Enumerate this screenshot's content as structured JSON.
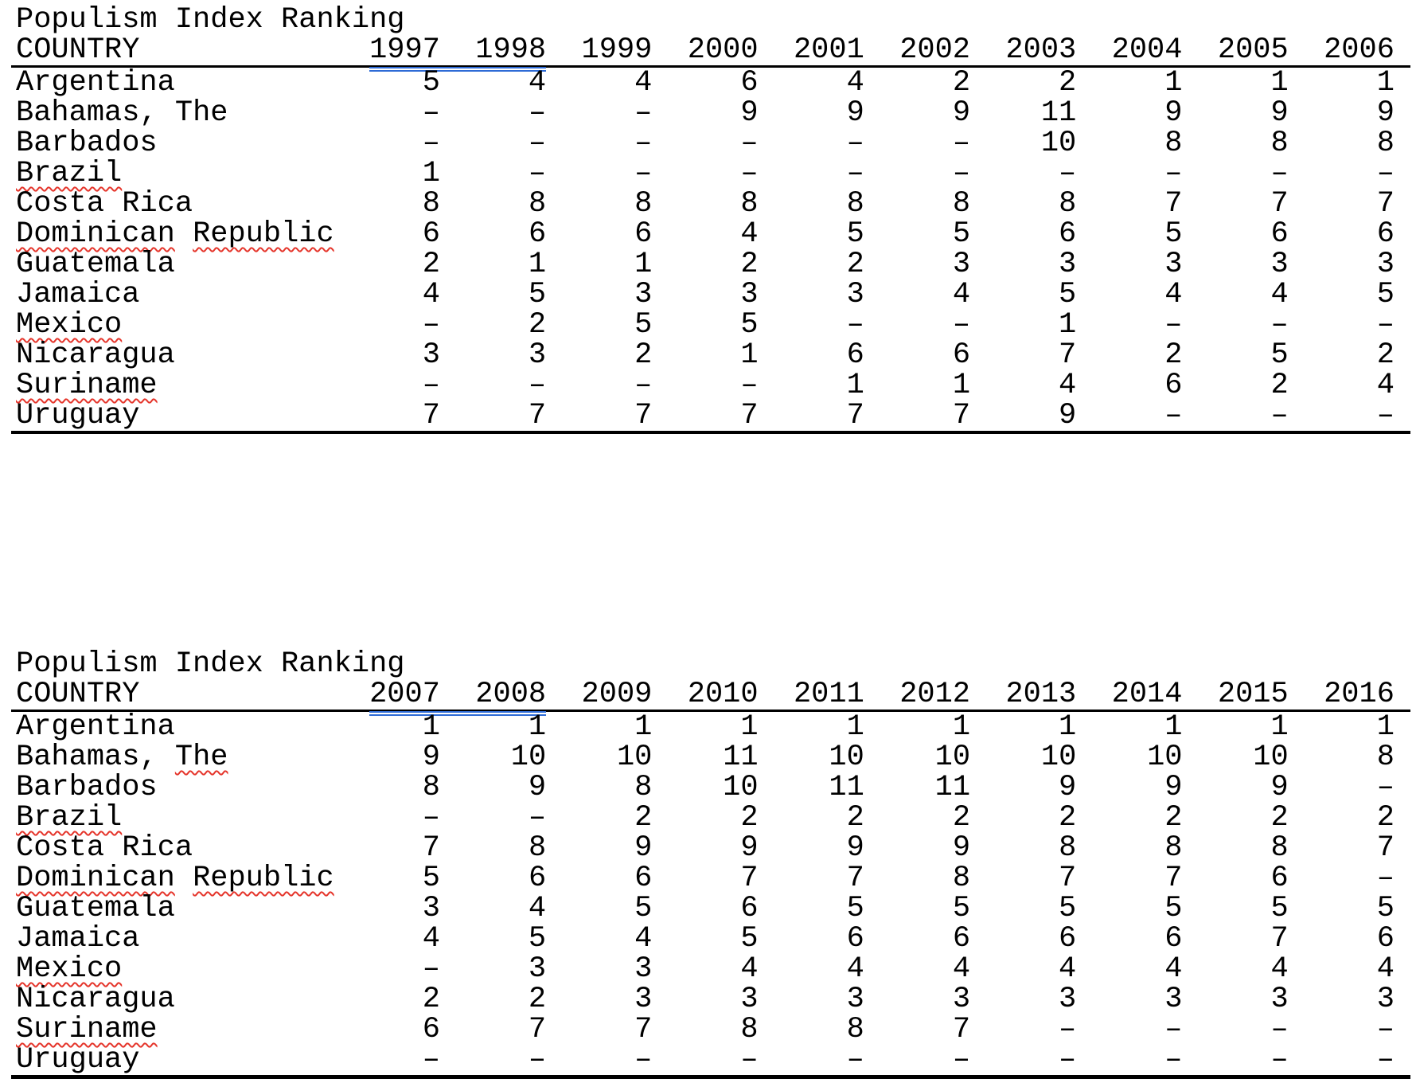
{
  "colors": {
    "grammar_underline_blue": "#2e6bd6",
    "squiggle_red": "#e5352b",
    "rule_black": "#000000"
  },
  "tables": [
    {
      "title": "Populism Index Ranking",
      "country_header": "COUNTRY",
      "years": [
        "1997",
        "1998",
        "1999",
        "2000",
        "2001",
        "2002",
        "2003",
        "2004",
        "2005",
        "2006"
      ],
      "grammar_underlined_years": [
        "1997",
        "1998"
      ],
      "rows": [
        {
          "country": "Argentina",
          "misspelled": [],
          "values": [
            "5",
            "4",
            "4",
            "6",
            "4",
            "2",
            "2",
            "1",
            "1",
            "1"
          ]
        },
        {
          "country": "Bahamas, The",
          "misspelled": [],
          "values": [
            "–",
            "–",
            "–",
            "9",
            "9",
            "9",
            "11",
            "9",
            "9",
            "9"
          ]
        },
        {
          "country": "Barbados",
          "misspelled": [],
          "values": [
            "–",
            "–",
            "–",
            "–",
            "–",
            "–",
            "10",
            "8",
            "8",
            "8"
          ]
        },
        {
          "country": "Brazil",
          "misspelled": [
            "Brazil"
          ],
          "values": [
            "1",
            "–",
            "–",
            "–",
            "–",
            "–",
            "–",
            "–",
            "–",
            "–"
          ]
        },
        {
          "country": "Costa Rica",
          "misspelled": [],
          "values": [
            "8",
            "8",
            "8",
            "8",
            "8",
            "8",
            "8",
            "7",
            "7",
            "7"
          ]
        },
        {
          "country": "Dominican Republic",
          "misspelled": [
            "Dominican",
            "Republic"
          ],
          "values": [
            "6",
            "6",
            "6",
            "4",
            "5",
            "5",
            "6",
            "5",
            "6",
            "6"
          ]
        },
        {
          "country": "Guatemala",
          "misspelled": [],
          "values": [
            "2",
            "1",
            "1",
            "2",
            "2",
            "3",
            "3",
            "3",
            "3",
            "3"
          ]
        },
        {
          "country": "Jamaica",
          "misspelled": [],
          "values": [
            "4",
            "5",
            "3",
            "3",
            "3",
            "4",
            "5",
            "4",
            "4",
            "5"
          ]
        },
        {
          "country": "Mexico",
          "misspelled": [
            "Mexico"
          ],
          "values": [
            "–",
            "2",
            "5",
            "5",
            "–",
            "–",
            "1",
            "–",
            "–",
            "–"
          ]
        },
        {
          "country": "Nicaragua",
          "misspelled": [],
          "values": [
            "3",
            "3",
            "2",
            "1",
            "6",
            "6",
            "7",
            "2",
            "5",
            "2"
          ]
        },
        {
          "country": "Suriname",
          "misspelled": [
            "Suriname"
          ],
          "values": [
            "–",
            "–",
            "–",
            "–",
            "1",
            "1",
            "4",
            "6",
            "2",
            "4"
          ]
        },
        {
          "country": "Uruguay",
          "misspelled": [],
          "values": [
            "7",
            "7",
            "7",
            "7",
            "7",
            "7",
            "9",
            "–",
            "–",
            "–"
          ]
        }
      ]
    },
    {
      "title": "Populism Index Ranking",
      "country_header": "COUNTRY",
      "years": [
        "2007",
        "2008",
        "2009",
        "2010",
        "2011",
        "2012",
        "2013",
        "2014",
        "2015",
        "2016"
      ],
      "grammar_underlined_years": [
        "2007",
        "2008"
      ],
      "rows": [
        {
          "country": "Argentina",
          "misspelled": [],
          "values": [
            "1",
            "1",
            "1",
            "1",
            "1",
            "1",
            "1",
            "1",
            "1",
            "1"
          ]
        },
        {
          "country": "Bahamas, The",
          "misspelled": [
            "The"
          ],
          "values": [
            "9",
            "10",
            "10",
            "11",
            "10",
            "10",
            "10",
            "10",
            "10",
            "8"
          ]
        },
        {
          "country": "Barbados",
          "misspelled": [],
          "values": [
            "8",
            "9",
            "8",
            "10",
            "11",
            "11",
            "9",
            "9",
            "9",
            "–"
          ]
        },
        {
          "country": "Brazil",
          "misspelled": [
            "Brazil"
          ],
          "values": [
            "–",
            "–",
            "2",
            "2",
            "2",
            "2",
            "2",
            "2",
            "2",
            "2"
          ]
        },
        {
          "country": "Costa Rica",
          "misspelled": [],
          "values": [
            "7",
            "8",
            "9",
            "9",
            "9",
            "9",
            "8",
            "8",
            "8",
            "7"
          ]
        },
        {
          "country": "Dominican Republic",
          "misspelled": [
            "Dominican",
            "Republic"
          ],
          "values": [
            "5",
            "6",
            "6",
            "7",
            "7",
            "8",
            "7",
            "7",
            "6",
            "–"
          ]
        },
        {
          "country": "Guatemala",
          "misspelled": [],
          "values": [
            "3",
            "4",
            "5",
            "6",
            "5",
            "5",
            "5",
            "5",
            "5",
            "5"
          ]
        },
        {
          "country": "Jamaica",
          "misspelled": [],
          "values": [
            "4",
            "5",
            "4",
            "5",
            "6",
            "6",
            "6",
            "6",
            "7",
            "6"
          ]
        },
        {
          "country": "Mexico",
          "misspelled": [
            "Mexico"
          ],
          "values": [
            "–",
            "3",
            "3",
            "4",
            "4",
            "4",
            "4",
            "4",
            "4",
            "4"
          ]
        },
        {
          "country": "Nicaragua",
          "misspelled": [],
          "values": [
            "2",
            "2",
            "3",
            "3",
            "3",
            "3",
            "3",
            "3",
            "3",
            "3"
          ]
        },
        {
          "country": "Suriname",
          "misspelled": [
            "Suriname"
          ],
          "values": [
            "6",
            "7",
            "7",
            "8",
            "8",
            "7",
            "–",
            "–",
            "–",
            "–"
          ]
        },
        {
          "country": "Uruguay",
          "misspelled": [],
          "values": [
            "–",
            "–",
            "–",
            "–",
            "–",
            "–",
            "–",
            "–",
            "–",
            "–"
          ]
        }
      ]
    }
  ]
}
